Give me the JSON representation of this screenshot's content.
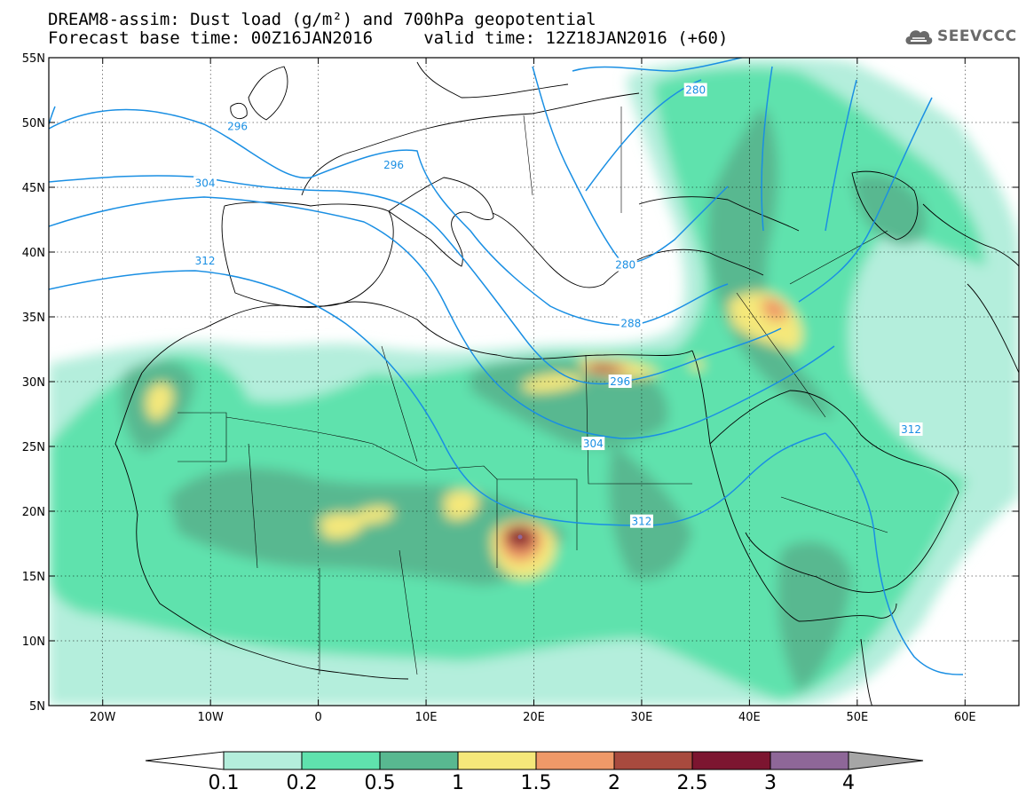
{
  "title": {
    "line1": "DREAM8-assim: Dust load (g/m²) and 700hPa geopotential",
    "line2": "Forecast base time: 00Z16JAN2016     valid time: 12Z18JAN2016 (+60)"
  },
  "logo": {
    "icon": "cloud-icon",
    "text": "SEEVCCC",
    "color": "#6a6a6a"
  },
  "map": {
    "lon_range": [
      -25,
      65
    ],
    "lat_range": [
      5,
      55
    ],
    "lon_ticks": [
      {
        "value": -20,
        "label": "20W"
      },
      {
        "value": -10,
        "label": "10W"
      },
      {
        "value": 0,
        "label": "0"
      },
      {
        "value": 10,
        "label": "10E"
      },
      {
        "value": 20,
        "label": "20E"
      },
      {
        "value": 30,
        "label": "30E"
      },
      {
        "value": 40,
        "label": "40E"
      },
      {
        "value": 50,
        "label": "50E"
      },
      {
        "value": 60,
        "label": "60E"
      }
    ],
    "lat_ticks": [
      {
        "value": 55,
        "label": "55N"
      },
      {
        "value": 50,
        "label": "50N"
      },
      {
        "value": 45,
        "label": "45N"
      },
      {
        "value": 40,
        "label": "40N"
      },
      {
        "value": 35,
        "label": "35N"
      },
      {
        "value": 30,
        "label": "30N"
      },
      {
        "value": 25,
        "label": "25N"
      },
      {
        "value": 20,
        "label": "20N"
      },
      {
        "value": 15,
        "label": "15N"
      },
      {
        "value": 10,
        "label": "10N"
      },
      {
        "value": 5,
        "label": "5N"
      }
    ],
    "contour_color": "#1a8fe3",
    "contour_labels": [
      {
        "text": "280",
        "lon": 35,
        "lat": 52.5
      },
      {
        "text": "296",
        "lon": -7.5,
        "lat": 49.7
      },
      {
        "text": "296",
        "lon": 7,
        "lat": 46.7
      },
      {
        "text": "304",
        "lon": -10.5,
        "lat": 45.3
      },
      {
        "text": "280",
        "lon": 28.5,
        "lat": 39
      },
      {
        "text": "312",
        "lon": -10.5,
        "lat": 39.3
      },
      {
        "text": "288",
        "lon": 29,
        "lat": 34.5
      },
      {
        "text": "296",
        "lon": 28,
        "lat": 30
      },
      {
        "text": "304",
        "lon": 25.5,
        "lat": 25.2
      },
      {
        "text": "312",
        "lon": 55,
        "lat": 26.3
      },
      {
        "text": "312",
        "lon": 30,
        "lat": 19.2
      }
    ]
  },
  "colorbar": {
    "colors": [
      "#ffffff",
      "#b4eedc",
      "#5fe2ad",
      "#58b890",
      "#f5e87a",
      "#ef9968",
      "#a84a3e",
      "#7c1530",
      "#8e6798",
      "#a6a6a6"
    ],
    "labels": [
      "0.1",
      "0.2",
      "0.5",
      "1",
      "1.5",
      "2",
      "2.5",
      "3",
      "4"
    ]
  }
}
